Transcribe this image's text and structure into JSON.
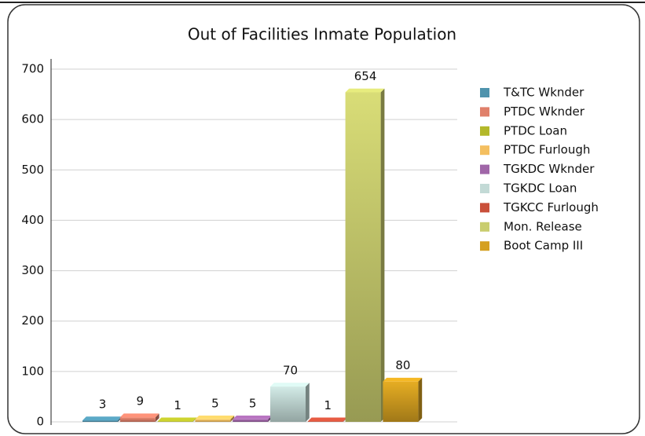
{
  "chart_data": {
    "type": "bar",
    "title": "Out of Facilities Inmate Population",
    "series": [
      {
        "name": "T&TC Wknder",
        "color": "#4f93ad",
        "values": [
          3
        ]
      },
      {
        "name": "PTDC Wknder",
        "color": "#e0806a",
        "values": [
          9
        ]
      },
      {
        "name": "PTDC Loan",
        "color": "#b3b82a",
        "values": [
          1
        ]
      },
      {
        "name": "PTDC Furlough",
        "color": "#f4bf60",
        "values": [
          5
        ]
      },
      {
        "name": "TGKDC Wknder",
        "color": "#a066a8",
        "values": [
          5
        ]
      },
      {
        "name": "TGKDC Loan",
        "color": "#c3dad6",
        "values": [
          70
        ]
      },
      {
        "name": "TGKCC Furlough",
        "color": "#c9503a",
        "values": [
          1
        ]
      },
      {
        "name": "Mon. Release",
        "color": "#c9cd6e",
        "values": [
          654
        ]
      },
      {
        "name": "Boot Camp III",
        "color": "#d5a020",
        "values": [
          80
        ]
      }
    ],
    "ylim": [
      0,
      700
    ],
    "yticks": [
      0,
      100,
      200,
      300,
      400,
      500,
      600,
      700
    ],
    "grid": true,
    "legend": "right"
  }
}
